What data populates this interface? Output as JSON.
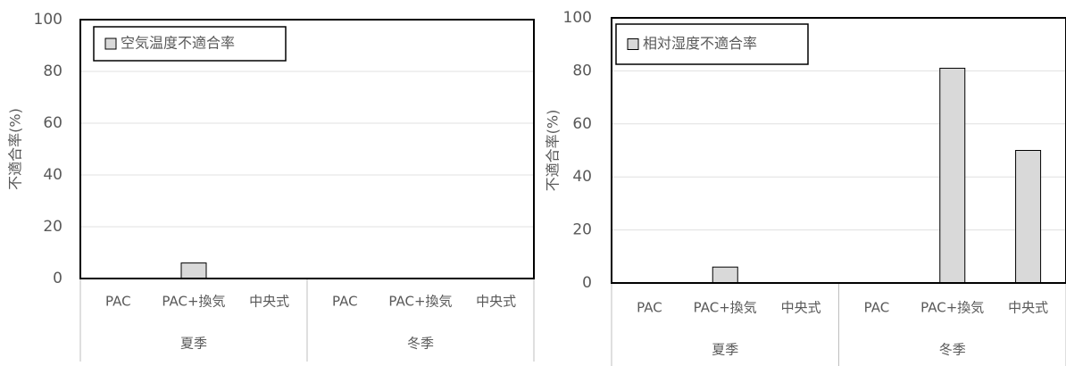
{
  "chart_data": [
    {
      "type": "bar",
      "y_label": "不適合率(%)",
      "categories": [
        "PAC",
        "PAC+換気",
        "中央式",
        "PAC",
        "PAC+換気",
        "中央式"
      ],
      "groups": [
        "夏季",
        "冬季"
      ],
      "series": [
        {
          "name": "空気温度不適合率",
          "color": "#d9d9d9",
          "values": [
            0,
            6,
            0,
            0,
            0,
            0
          ]
        }
      ],
      "ylim": [
        0,
        100
      ],
      "yticks": [
        0,
        20,
        40,
        60,
        80,
        100
      ],
      "grid": true,
      "legend": "upper left"
    },
    {
      "type": "bar",
      "y_label": "不適合率(%)",
      "categories": [
        "PAC",
        "PAC+換気",
        "中央式",
        "PAC",
        "PAC+換気",
        "中央式"
      ],
      "groups": [
        "夏季",
        "冬季"
      ],
      "series": [
        {
          "name": "相対湿度不適合率",
          "color": "#d9d9d9",
          "values": [
            0,
            6,
            0,
            0,
            81,
            50
          ]
        }
      ],
      "ylim": [
        0,
        100
      ],
      "yticks": [
        0,
        20,
        40,
        60,
        80,
        100
      ],
      "grid": true,
      "legend": "upper left"
    }
  ]
}
